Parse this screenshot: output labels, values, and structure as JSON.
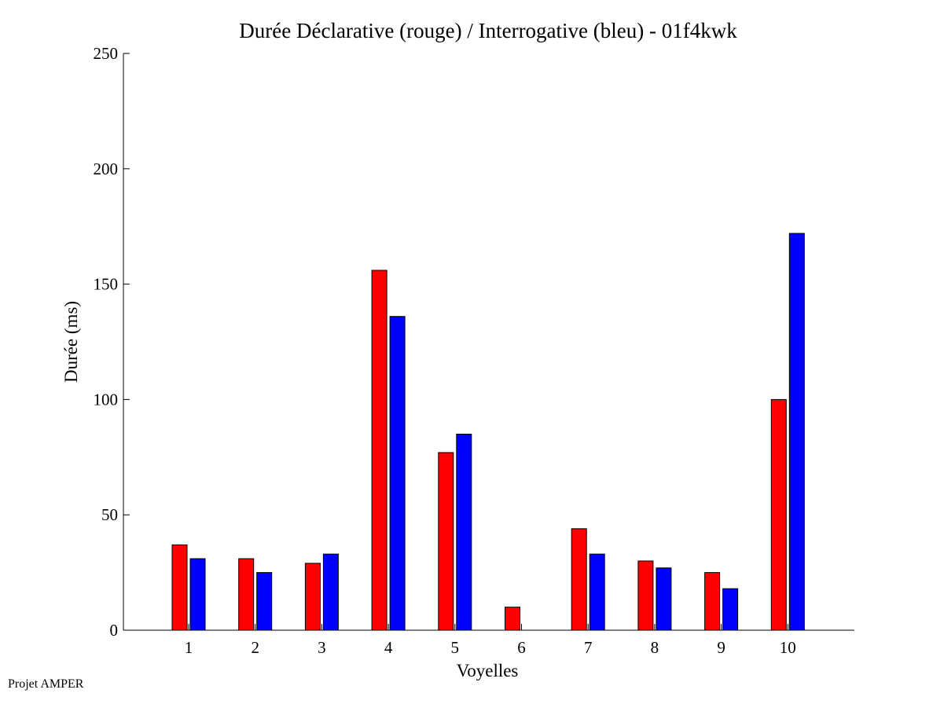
{
  "footer_text": "Projet AMPER",
  "chart_data": {
    "type": "bar",
    "title": "Durée Déclarative (rouge) / Interrogative (bleu) - 01f4kwk",
    "xlabel": "Voyelles",
    "ylabel": "Durée (ms)",
    "ylim": [
      0,
      250
    ],
    "yticks": [
      0,
      50,
      100,
      150,
      200,
      250
    ],
    "categories": [
      "1",
      "2",
      "3",
      "4",
      "5",
      "6",
      "7",
      "8",
      "9",
      "10"
    ],
    "grid": false,
    "legend": "none",
    "series": [
      {
        "name": "Déclarative",
        "color": "#ff0000",
        "values": [
          37,
          31,
          29,
          156,
          77,
          10,
          44,
          30,
          25,
          100
        ]
      },
      {
        "name": "Interrogative",
        "color": "#0000ff",
        "values": [
          31,
          25,
          33,
          136,
          85,
          0,
          33,
          27,
          18,
          172
        ]
      }
    ]
  }
}
